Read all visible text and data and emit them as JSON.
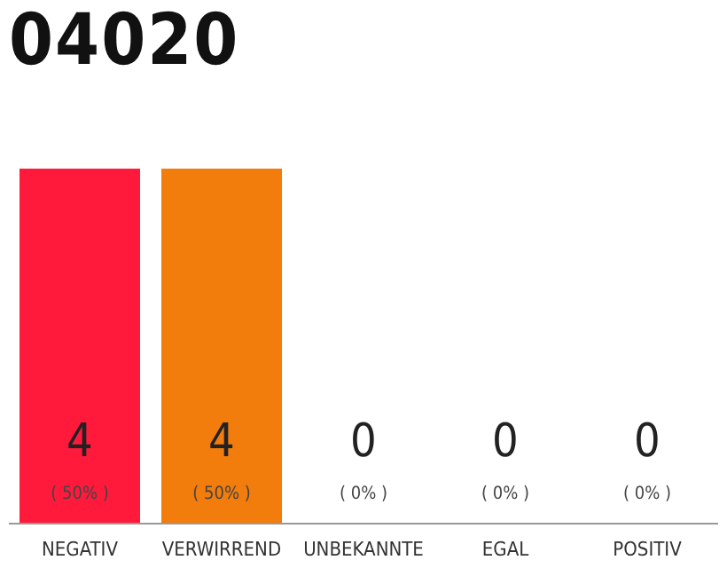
{
  "chart_data": {
    "type": "bar",
    "title": "04020",
    "categories": [
      "NEGATIV",
      "VERWIRREND",
      "UNBEKANNTE",
      "EGAL",
      "POSITIV"
    ],
    "values": [
      4,
      4,
      0,
      0,
      0
    ],
    "colors": [
      "#ff1a3c",
      "#f27c0c",
      "#eeeeee",
      "#eeeeee",
      "#eeeeee"
    ],
    "value_labels": [
      "4\n( 50% )",
      "4\n( 50% )",
      "0\n( 0% )",
      "0\n( 0% )",
      "0\n( 0% )"
    ],
    "tick_labels": "x"
  }
}
